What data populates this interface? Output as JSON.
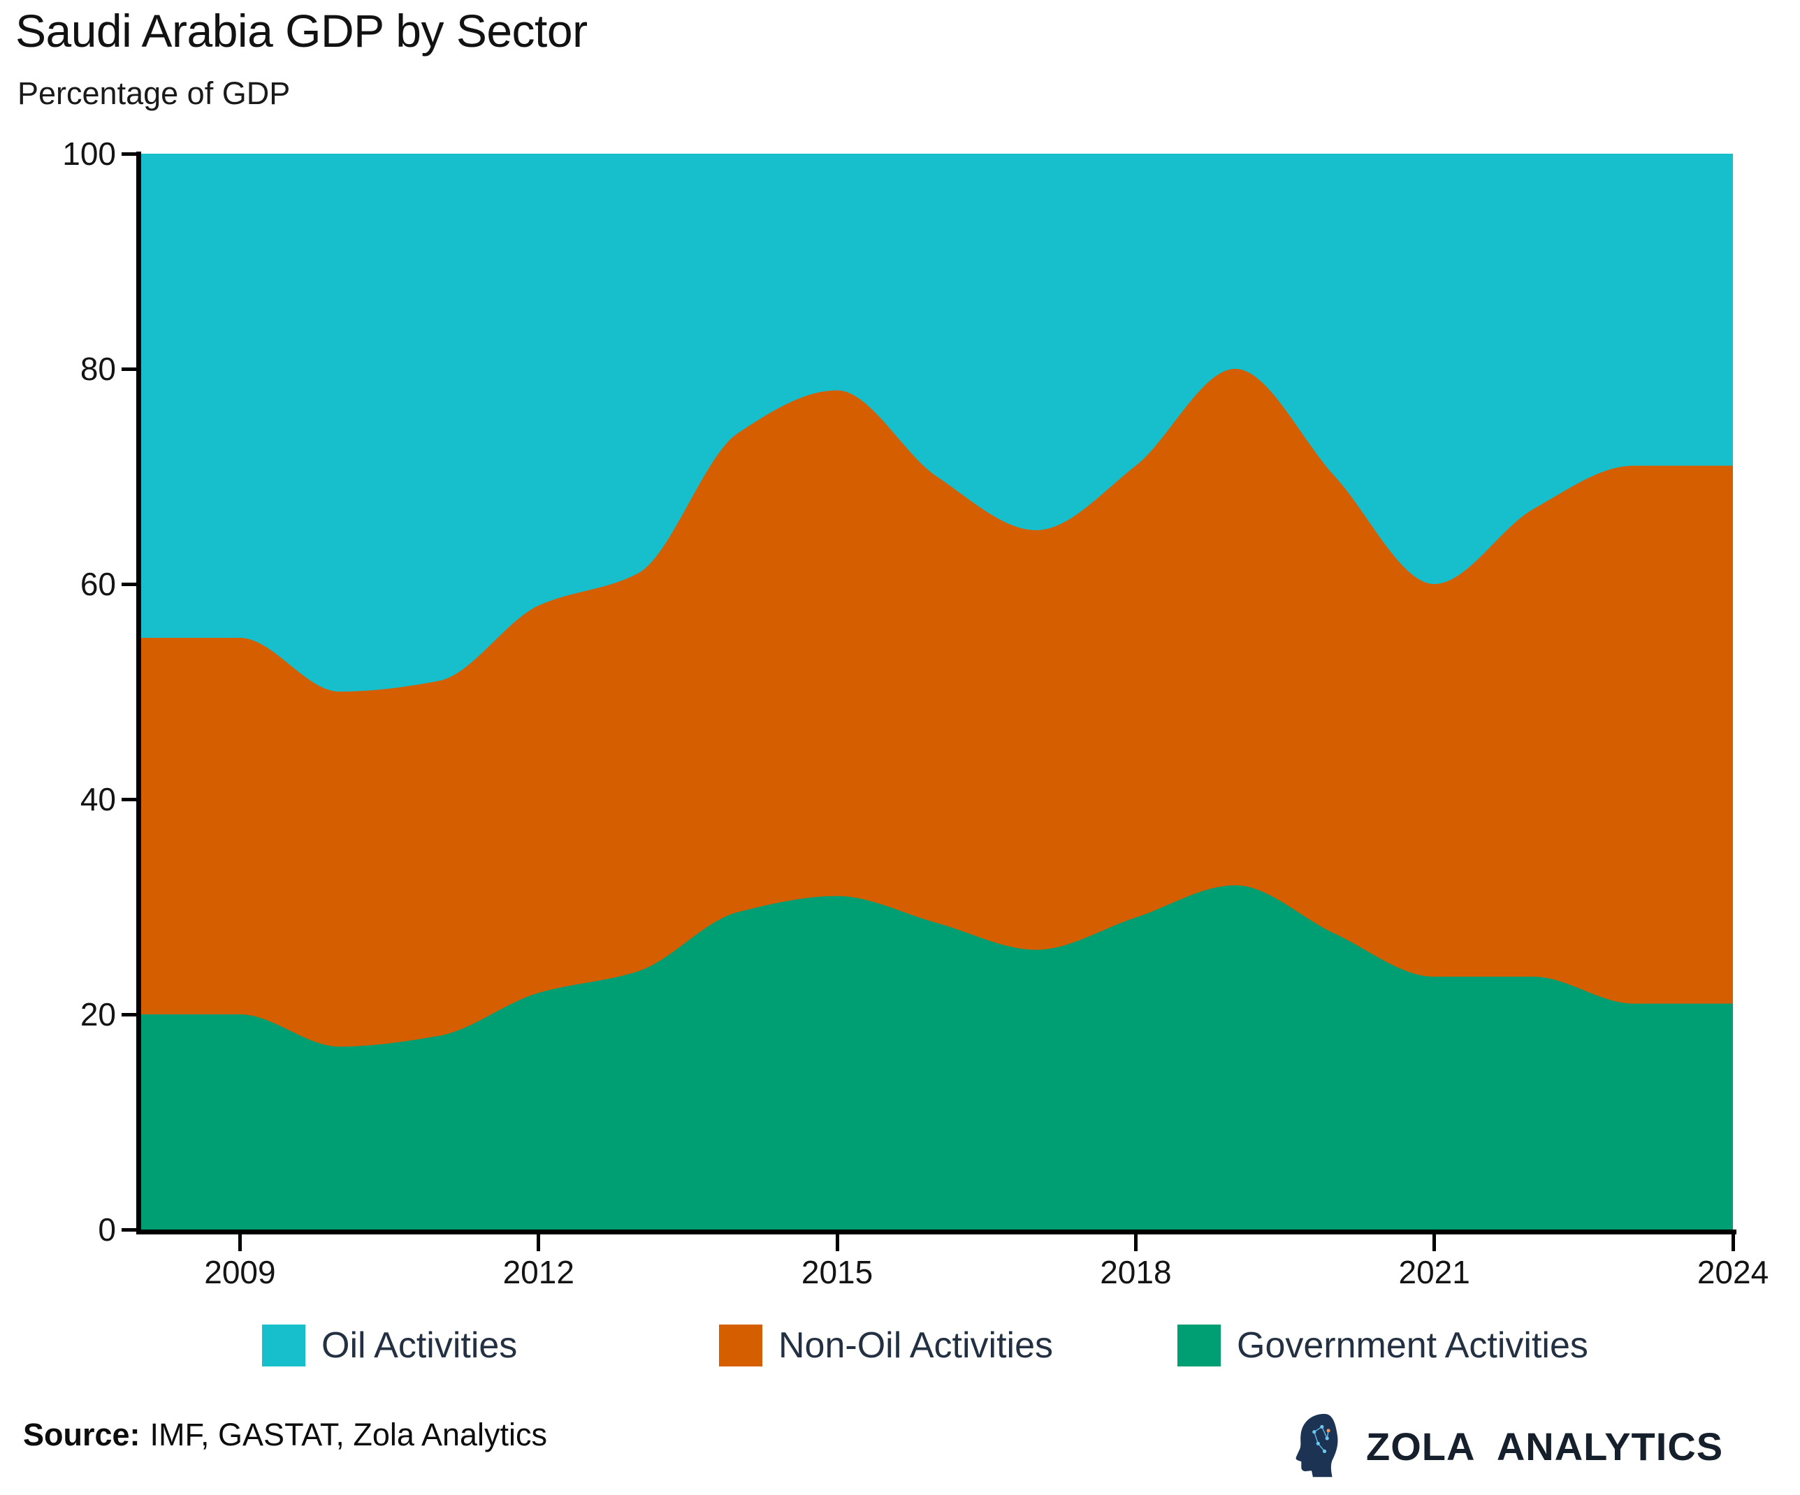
{
  "header": {
    "title": "Saudi Arabia GDP by Sector",
    "subtitle": "Percentage of GDP"
  },
  "y_axis": {
    "ticks": [
      {
        "label": "100",
        "value": 100
      },
      {
        "label": "80",
        "value": 80
      },
      {
        "label": "60",
        "value": 60
      },
      {
        "label": "40",
        "value": 40
      },
      {
        "label": "20",
        "value": 20
      },
      {
        "label": "0",
        "value": 0
      }
    ]
  },
  "x_axis": {
    "ticks": [
      {
        "label": "2009",
        "year": 2009
      },
      {
        "label": "2012",
        "year": 2012
      },
      {
        "label": "2015",
        "year": 2015
      },
      {
        "label": "2018",
        "year": 2018
      },
      {
        "label": "2021",
        "year": 2021
      },
      {
        "label": "2024",
        "year": 2024
      }
    ]
  },
  "legend": {
    "items": [
      {
        "label": "Oil Activities",
        "color": "#17BECC"
      },
      {
        "label": "Non-Oil Activities",
        "color": "#D55E00"
      },
      {
        "label": "Government Activities",
        "color": "#009E73"
      }
    ]
  },
  "source": {
    "prefix": "Source:",
    "text": "IMF, GASTAT, Zola Analytics"
  },
  "brand": {
    "name": "ZOLA ANALYTICS"
  },
  "chart_data": {
    "type": "area",
    "stacked": true,
    "smoothing": "monotone",
    "title": "Saudi Arabia GDP by Sector",
    "xlabel": "",
    "ylabel": "Percentage of GDP",
    "ylim": [
      0,
      100
    ],
    "grid": false,
    "legend_position": "bottom",
    "x": [
      2008,
      2009,
      2010,
      2011,
      2012,
      2013,
      2014,
      2015,
      2016,
      2017,
      2018,
      2019,
      2020,
      2021,
      2022,
      2023,
      2024
    ],
    "series": [
      {
        "name": "Government Activities",
        "color": "#009E73",
        "values": [
          20,
          20,
          17,
          18,
          22,
          24,
          29.5,
          31,
          28.5,
          26,
          29,
          32,
          27.5,
          23.5,
          23.5,
          21,
          21
        ]
      },
      {
        "name": "Non-Oil Activities",
        "color": "#D55E00",
        "values": [
          35,
          35,
          33,
          33,
          36,
          37,
          44.5,
          47,
          41.5,
          39,
          42,
          48,
          42.5,
          36.5,
          43.5,
          50,
          50
        ]
      },
      {
        "name": "Oil Activities",
        "color": "#17BECC",
        "values": [
          45,
          45,
          50,
          49,
          42,
          39,
          26,
          22,
          30,
          35,
          29,
          20,
          30,
          40,
          33,
          29,
          29
        ]
      }
    ]
  }
}
